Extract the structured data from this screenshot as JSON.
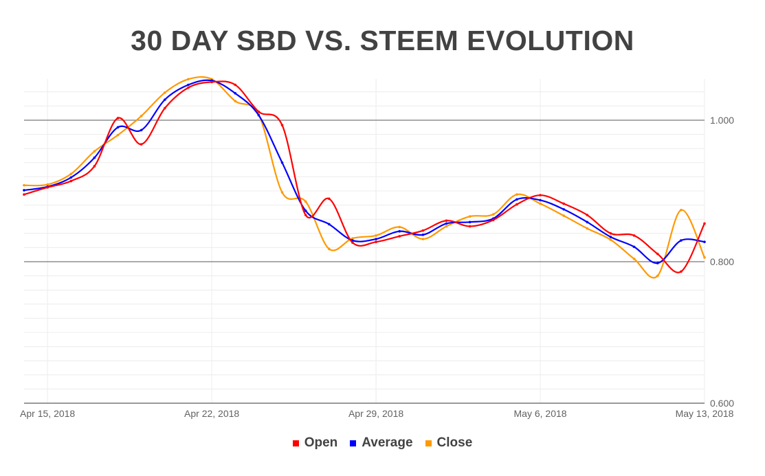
{
  "chart_data": {
    "type": "line",
    "title": "30 DAY SBD VS. STEEM EVOLUTION",
    "xlabel": "",
    "ylabel": "",
    "x_start": "2018-04-14",
    "x_end": "2018-05-13",
    "x_tick_labels": [
      "Apr 15, 2018",
      "Apr 22, 2018",
      "Apr 29, 2018",
      "May 6, 2018",
      "May 13, 2018"
    ],
    "y_tick_labels": [
      "1.000",
      "0.800",
      "0.600"
    ],
    "y_ticks": [
      1.0,
      0.8,
      0.6
    ],
    "ylim": [
      0.6,
      1.058
    ],
    "y_axis_side": "right",
    "grid": true,
    "smooth": true,
    "legend_position": "bottom",
    "series": [
      {
        "name": "Open",
        "color": "#ff0000",
        "values": [
          0.895,
          0.905,
          0.914,
          0.935,
          1.003,
          0.966,
          1.017,
          1.046,
          1.054,
          1.05,
          1.012,
          0.993,
          0.866,
          0.889,
          0.827,
          0.828,
          0.836,
          0.844,
          0.858,
          0.85,
          0.859,
          0.881,
          0.894,
          0.882,
          0.866,
          0.84,
          0.837,
          0.811,
          0.786,
          0.854
        ]
      },
      {
        "name": "Average",
        "color": "#0000ff",
        "values": [
          0.901,
          0.906,
          0.919,
          0.947,
          0.99,
          0.986,
          1.029,
          1.05,
          1.056,
          1.038,
          1.007,
          0.94,
          0.872,
          0.853,
          0.83,
          0.832,
          0.843,
          0.838,
          0.854,
          0.856,
          0.861,
          0.888,
          0.887,
          0.874,
          0.856,
          0.835,
          0.821,
          0.798,
          0.83,
          0.828
        ]
      },
      {
        "name": "Close",
        "color": "#ff9900",
        "values": [
          0.908,
          0.909,
          0.924,
          0.956,
          0.979,
          1.006,
          1.039,
          1.058,
          1.058,
          1.027,
          1.008,
          0.898,
          0.885,
          0.818,
          0.833,
          0.837,
          0.849,
          0.832,
          0.85,
          0.864,
          0.867,
          0.895,
          0.882,
          0.865,
          0.847,
          0.831,
          0.804,
          0.78,
          0.873,
          0.806
        ]
      }
    ]
  }
}
